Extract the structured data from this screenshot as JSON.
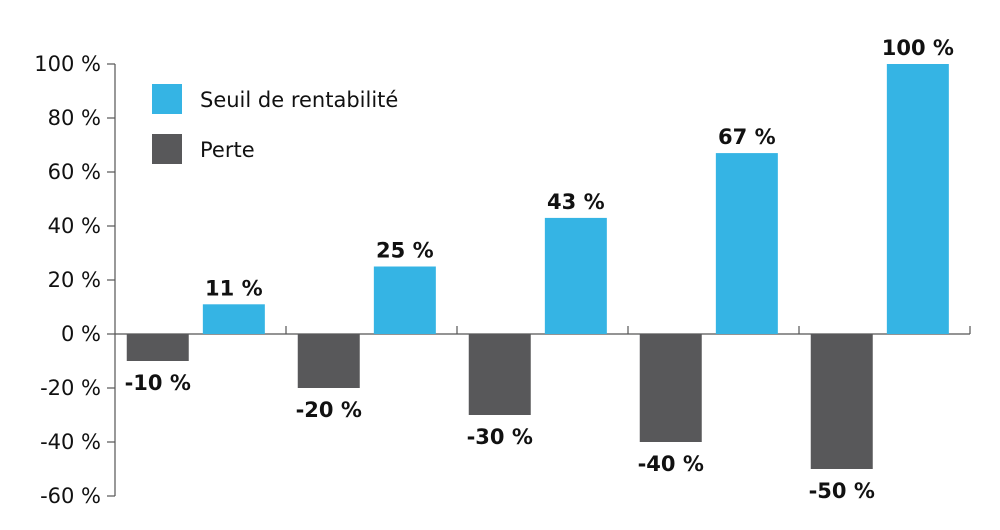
{
  "chart_data": {
    "type": "bar",
    "categories": [
      "",
      "",
      "",
      "",
      ""
    ],
    "series": [
      {
        "name": "Perte",
        "color": "#58585a",
        "values": [
          -10,
          -20,
          -30,
          -40,
          -50
        ],
        "labels": [
          "-10 %",
          "-20 %",
          "-30 %",
          "-40 %",
          "-50 %"
        ]
      },
      {
        "name": "Seuil de rentabilité",
        "color": "#35b4e4",
        "values": [
          11,
          25,
          43,
          67,
          100
        ],
        "labels": [
          "11 %",
          "25 %",
          "43 %",
          "67 %",
          "100 %"
        ]
      }
    ],
    "ylim": [
      -60,
      100
    ],
    "yticks": [
      100,
      80,
      60,
      40,
      20,
      0,
      -20,
      -40,
      -60
    ],
    "ytick_labels": [
      "100 %",
      "80 %",
      "60 %",
      "40 %",
      "20 %",
      "0 %",
      "-20 %",
      "-40 %",
      "-60 %"
    ],
    "legend": {
      "placement": "top-left",
      "items": [
        {
          "label": "Seuil de rentabilité",
          "color": "#35b4e4"
        },
        {
          "label": "Perte",
          "color": "#58585a"
        }
      ]
    },
    "title": "",
    "xlabel": "",
    "ylabel": "",
    "grid": false
  }
}
